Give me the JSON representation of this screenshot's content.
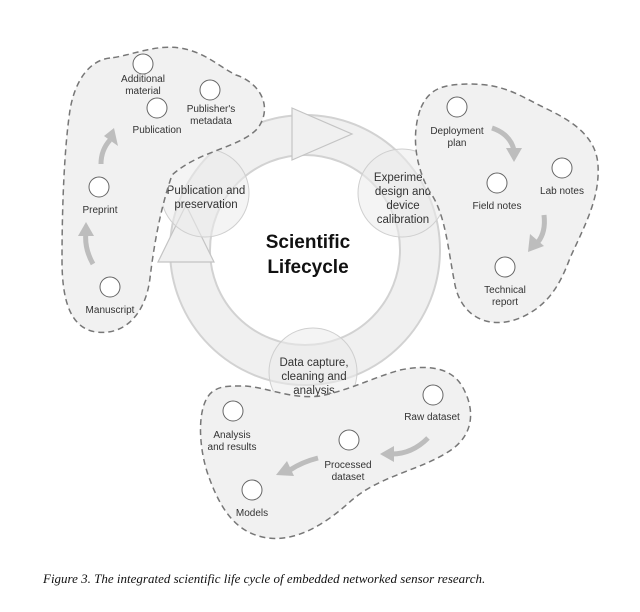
{
  "center": {
    "line1": "Scientific",
    "line2": "Lifecycle"
  },
  "stages": {
    "publication": {
      "line1": "Publication and",
      "line2": "preservation"
    },
    "experiment": {
      "line1": "Experiment",
      "line2": "design and",
      "line3": "device",
      "line4": "calibration"
    },
    "capture": {
      "line1": "Data capture,",
      "line2": "cleaning and",
      "line3": "analysis"
    }
  },
  "left_cluster": {
    "additional_material": {
      "line1": "Additional",
      "line2": "material"
    },
    "publishers_metadata": {
      "line1": "Publisher's",
      "line2": "metadata"
    },
    "publication": "Publication",
    "preprint": "Preprint",
    "manuscript": "Manuscript"
  },
  "right_cluster": {
    "deployment_plan": {
      "line1": "Deployment",
      "line2": "plan"
    },
    "field_notes": "Field notes",
    "lab_notes": "Lab notes",
    "technical_report": {
      "line1": "Technical",
      "line2": "report"
    }
  },
  "bottom_cluster": {
    "raw_dataset": "Raw dataset",
    "processed_dataset": {
      "line1": "Processed",
      "line2": "dataset"
    },
    "analysis_results": {
      "line1": "Analysis",
      "line2": "and results"
    },
    "models": "Models"
  },
  "caption": "Figure 3. The integrated scientific life cycle of embedded networked sensor research.",
  "colors": {
    "blob_fill": "#f1f1f1",
    "blob_stroke": "#777777",
    "arrow": "#c8c8c8",
    "ring": "#ebebeb"
  }
}
